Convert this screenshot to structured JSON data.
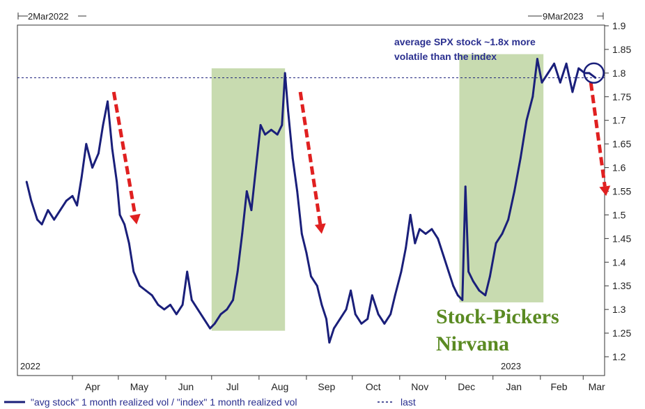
{
  "chart_data": {
    "type": "line",
    "title": "",
    "xlabel": "",
    "ylabel": "",
    "x_start": "2Mar2022",
    "x_end": "9Mar2023",
    "x_start_label": "2Mar2022",
    "x_end_label": "9Mar2023",
    "year_labels": [
      "2022",
      "2023"
    ],
    "x_ticks": [
      "Apr",
      "May",
      "Jun",
      "Jul",
      "Aug",
      "Sep",
      "Oct",
      "Nov",
      "Dec",
      "Jan",
      "Feb",
      "Mar"
    ],
    "y_ticks": [
      "1.2",
      "1.25",
      "1.3",
      "1.35",
      "1.4",
      "1.45",
      "1.5",
      "1.55",
      "1.6",
      "1.65",
      "1.7",
      "1.75",
      "1.8",
      "1.85",
      "1.9"
    ],
    "ylim": [
      1.18,
      1.91
    ],
    "grid": false,
    "legend_position": "bottom-left",
    "series": [
      {
        "name": "\"avg stock\" 1 month realized vol / \"index\" 1 month realized vol",
        "color": "#1a1f7a",
        "points": [
          [
            "2022-03-02",
            1.57
          ],
          [
            "2022-03-05",
            1.53
          ],
          [
            "2022-03-09",
            1.49
          ],
          [
            "2022-03-12",
            1.48
          ],
          [
            "2022-03-16",
            1.51
          ],
          [
            "2022-03-20",
            1.49
          ],
          [
            "2022-03-24",
            1.51
          ],
          [
            "2022-03-28",
            1.53
          ],
          [
            "2022-04-01",
            1.54
          ],
          [
            "2022-04-04",
            1.52
          ],
          [
            "2022-04-07",
            1.58
          ],
          [
            "2022-04-10",
            1.65
          ],
          [
            "2022-04-14",
            1.6
          ],
          [
            "2022-04-18",
            1.63
          ],
          [
            "2022-04-21",
            1.69
          ],
          [
            "2022-04-24",
            1.74
          ],
          [
            "2022-04-27",
            1.64
          ],
          [
            "2022-04-30",
            1.57
          ],
          [
            "2022-05-02",
            1.5
          ],
          [
            "2022-05-05",
            1.48
          ],
          [
            "2022-05-08",
            1.44
          ],
          [
            "2022-05-11",
            1.38
          ],
          [
            "2022-05-15",
            1.35
          ],
          [
            "2022-05-19",
            1.34
          ],
          [
            "2022-05-23",
            1.33
          ],
          [
            "2022-05-27",
            1.31
          ],
          [
            "2022-05-31",
            1.3
          ],
          [
            "2022-06-04",
            1.31
          ],
          [
            "2022-06-08",
            1.29
          ],
          [
            "2022-06-12",
            1.31
          ],
          [
            "2022-06-15",
            1.38
          ],
          [
            "2022-06-18",
            1.32
          ],
          [
            "2022-06-22",
            1.3
          ],
          [
            "2022-06-26",
            1.28
          ],
          [
            "2022-06-30",
            1.26
          ],
          [
            "2022-07-03",
            1.27
          ],
          [
            "2022-07-07",
            1.29
          ],
          [
            "2022-07-11",
            1.3
          ],
          [
            "2022-07-15",
            1.32
          ],
          [
            "2022-07-18",
            1.38
          ],
          [
            "2022-07-21",
            1.46
          ],
          [
            "2022-07-24",
            1.55
          ],
          [
            "2022-07-27",
            1.51
          ],
          [
            "2022-07-30",
            1.6
          ],
          [
            "2022-08-02",
            1.69
          ],
          [
            "2022-08-05",
            1.67
          ],
          [
            "2022-08-09",
            1.68
          ],
          [
            "2022-08-13",
            1.67
          ],
          [
            "2022-08-16",
            1.69
          ],
          [
            "2022-08-18",
            1.8
          ],
          [
            "2022-08-20",
            1.72
          ],
          [
            "2022-08-23",
            1.62
          ],
          [
            "2022-08-26",
            1.55
          ],
          [
            "2022-08-29",
            1.46
          ],
          [
            "2022-09-01",
            1.42
          ],
          [
            "2022-09-04",
            1.37
          ],
          [
            "2022-09-08",
            1.35
          ],
          [
            "2022-09-11",
            1.31
          ],
          [
            "2022-09-14",
            1.28
          ],
          [
            "2022-09-16",
            1.23
          ],
          [
            "2022-09-19",
            1.26
          ],
          [
            "2022-09-23",
            1.28
          ],
          [
            "2022-09-27",
            1.3
          ],
          [
            "2022-09-30",
            1.34
          ],
          [
            "2022-10-03",
            1.29
          ],
          [
            "2022-10-07",
            1.27
          ],
          [
            "2022-10-11",
            1.28
          ],
          [
            "2022-10-14",
            1.33
          ],
          [
            "2022-10-18",
            1.29
          ],
          [
            "2022-10-22",
            1.27
          ],
          [
            "2022-10-26",
            1.29
          ],
          [
            "2022-10-29",
            1.33
          ],
          [
            "2022-11-02",
            1.38
          ],
          [
            "2022-11-05",
            1.43
          ],
          [
            "2022-11-08",
            1.5
          ],
          [
            "2022-11-11",
            1.44
          ],
          [
            "2022-11-14",
            1.47
          ],
          [
            "2022-11-18",
            1.46
          ],
          [
            "2022-11-22",
            1.47
          ],
          [
            "2022-11-26",
            1.45
          ],
          [
            "2022-11-30",
            1.41
          ],
          [
            "2022-12-03",
            1.38
          ],
          [
            "2022-12-06",
            1.35
          ],
          [
            "2022-12-09",
            1.33
          ],
          [
            "2022-12-12",
            1.32
          ],
          [
            "2022-12-14",
            1.56
          ],
          [
            "2022-12-16",
            1.38
          ],
          [
            "2022-12-19",
            1.36
          ],
          [
            "2022-12-23",
            1.34
          ],
          [
            "2022-12-27",
            1.33
          ],
          [
            "2022-12-30",
            1.37
          ],
          [
            "2023-01-03",
            1.44
          ],
          [
            "2023-01-07",
            1.46
          ],
          [
            "2023-01-11",
            1.49
          ],
          [
            "2023-01-15",
            1.55
          ],
          [
            "2023-01-19",
            1.62
          ],
          [
            "2023-01-23",
            1.7
          ],
          [
            "2023-01-27",
            1.75
          ],
          [
            "2023-01-30",
            1.83
          ],
          [
            "2023-02-02",
            1.78
          ],
          [
            "2023-02-06",
            1.8
          ],
          [
            "2023-02-10",
            1.82
          ],
          [
            "2023-02-14",
            1.78
          ],
          [
            "2023-02-18",
            1.82
          ],
          [
            "2023-02-22",
            1.76
          ],
          [
            "2023-02-26",
            1.81
          ],
          [
            "2023-03-02",
            1.8
          ],
          [
            "2023-03-05",
            1.8
          ],
          [
            "2023-03-09",
            1.79
          ]
        ]
      }
    ],
    "reference_line": {
      "name": "last",
      "value": 1.79,
      "color": "#1a1f7a",
      "style": "dashed"
    },
    "shaded_periods": [
      {
        "from": "2022-07-01",
        "to": "2022-08-18",
        "color": "#c8dbb0"
      },
      {
        "from": "2022-12-10",
        "to": "2023-02-03",
        "color": "#c8dbb0"
      }
    ],
    "annotations": {
      "note_line1": "average SPX stock ~1.8x more",
      "note_line2": "volatile than the index",
      "big_line1": "Stock-Pickers",
      "big_line2": "Nirvana",
      "arrow_color": "#e02020",
      "arrows": [
        {
          "from": [
            "2022-04-28",
            1.76
          ],
          "to": [
            "2022-05-13",
            1.48
          ]
        },
        {
          "from": [
            "2022-08-28",
            1.76
          ],
          "to": [
            "2022-09-11",
            1.46
          ]
        },
        {
          "from": [
            "2023-03-06",
            1.78
          ],
          "to": [
            "2023-03-16",
            1.54
          ]
        }
      ],
      "circle_at": [
        "2023-03-08",
        1.8
      ]
    },
    "legend": [
      {
        "label": "\"avg stock\" 1 month realized vol / \"index\" 1 month realized vol",
        "style": "solid",
        "color": "#1a1f7a"
      },
      {
        "label": "last",
        "style": "dashed",
        "color": "#1a1f7a"
      }
    ]
  }
}
